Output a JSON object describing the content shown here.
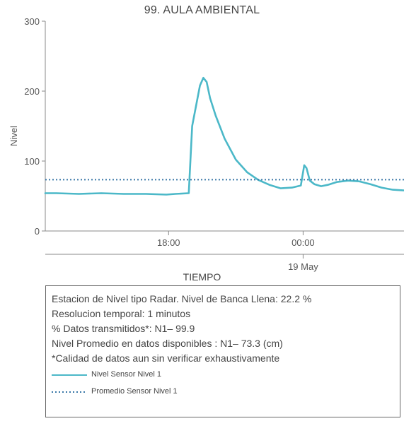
{
  "chart_data": {
    "type": "line",
    "title": "99. AULA AMBIENTAL",
    "ylabel": "Nivel",
    "xlabel": "TIEMPO",
    "ylim": [
      0,
      300
    ],
    "yticks": [
      0,
      100,
      200,
      300
    ],
    "xticks": [
      "18:00",
      "00:00"
    ],
    "date_label": "19 May",
    "series": [
      {
        "name": "Nivel Sensor Nivel 1",
        "color": "#4bb8c8",
        "style": "solid",
        "x_hours": [
          12.5,
          13,
          14,
          15,
          16,
          17,
          17.9,
          18.3,
          18.9,
          19.05,
          19.4,
          19.55,
          19.7,
          19.85,
          20.1,
          20.5,
          21.0,
          21.5,
          22.0,
          22.5,
          23.0,
          23.5,
          23.9,
          24.05,
          24.15,
          24.3,
          24.5,
          24.8,
          25.1,
          25.5,
          26.0,
          26.5,
          27.0,
          27.5,
          28.0,
          28.5
        ],
        "values": [
          54,
          54,
          53,
          54,
          53,
          53,
          52,
          53,
          54,
          150,
          208,
          219,
          213,
          190,
          165,
          132,
          102,
          84,
          73,
          66,
          61,
          62,
          65,
          94,
          90,
          72,
          67,
          64,
          66,
          70,
          72,
          71,
          67,
          62,
          59,
          58
        ]
      },
      {
        "name": "Promedio Sensor Nivel 1",
        "color": "#3a78a8",
        "style": "dotted",
        "x_hours": [
          12.5,
          28.5
        ],
        "values": [
          73.3,
          73.3
        ]
      }
    ]
  },
  "info_box": {
    "lines": [
      "Estacion de Nivel tipo Radar. Nivel de Banca Llena: 22.2 %",
      "Resolucion temporal: 1 minutos",
      "% Datos transmitidos*: N1– 99.9",
      "Nivel Promedio en datos disponibles : N1– 73.3 (cm)",
      "*Calidad de datos aun sin verificar exhaustivamente"
    ],
    "legend": [
      {
        "label": "Nivel Sensor Nivel 1",
        "color": "#4bb8c8",
        "style": "solid"
      },
      {
        "label": "Promedio Sensor Nivel 1",
        "color": "#3a78a8",
        "style": "dotted"
      }
    ]
  }
}
